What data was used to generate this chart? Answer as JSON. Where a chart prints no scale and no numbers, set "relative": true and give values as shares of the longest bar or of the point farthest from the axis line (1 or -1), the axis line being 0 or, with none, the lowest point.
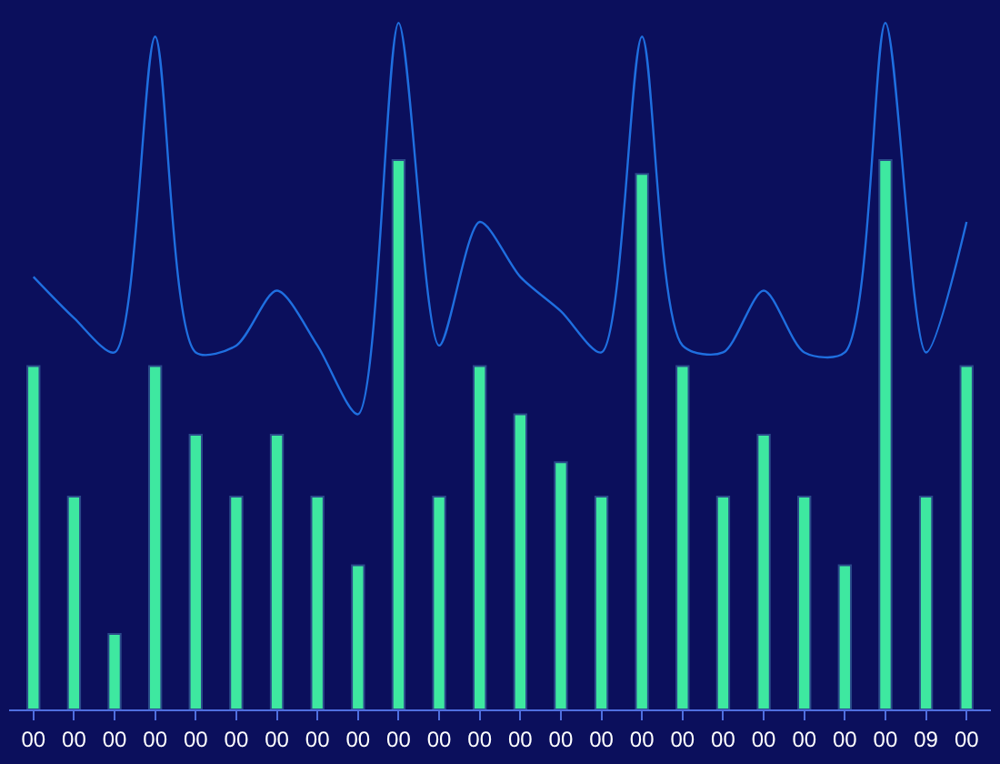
{
  "chart_data": {
    "type": "bar",
    "relative": true,
    "categories": [
      "00",
      "00",
      "00",
      "00",
      "00",
      "00",
      "00",
      "00",
      "00",
      "00",
      "00",
      "00",
      "00",
      "00",
      "00",
      "00",
      "00",
      "00",
      "00",
      "00",
      "00",
      "00",
      "09",
      "00"
    ],
    "series": [
      {
        "color": "#3ee8a0",
        "values": [
          0.5,
          0.31,
          0.11,
          0.5,
          0.4,
          0.31,
          0.4,
          0.31,
          0.21,
          0.8,
          0.31,
          0.5,
          0.43,
          0.36,
          0.31,
          0.78,
          0.5,
          0.31,
          0.4,
          0.31,
          0.21,
          0.8,
          0.31,
          0.5
        ]
      },
      {
        "type": "line",
        "color": "#1f6fe0",
        "values": [
          0.63,
          0.57,
          0.52,
          0.98,
          0.52,
          0.53,
          0.61,
          0.53,
          0.43,
          1,
          0.53,
          0.71,
          0.63,
          0.58,
          0.52,
          0.98,
          0.53,
          0.52,
          0.61,
          0.52,
          0.52,
          1,
          0.52,
          0.71
        ]
      }
    ]
  }
}
